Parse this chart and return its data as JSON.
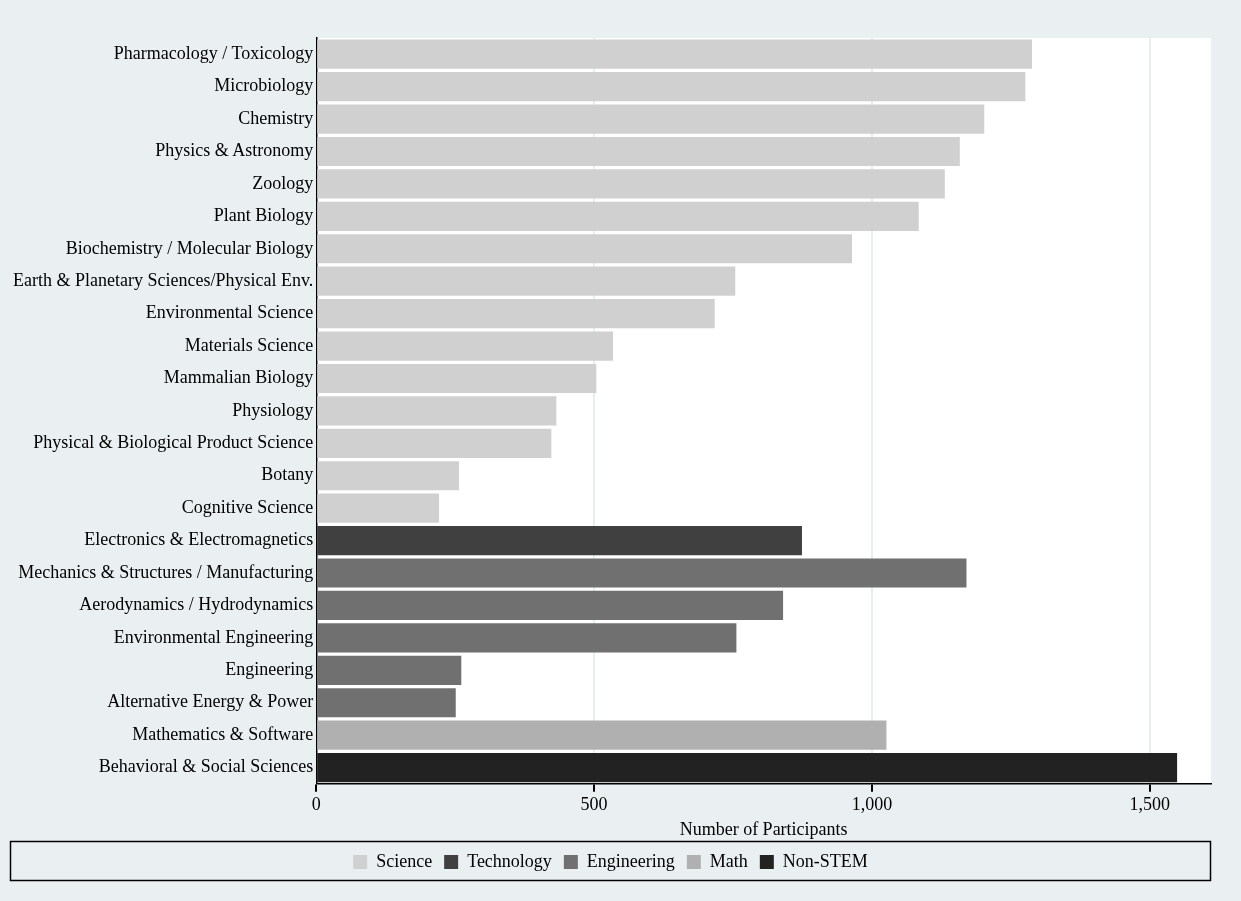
{
  "chart_data": {
    "type": "bar",
    "orientation": "horizontal",
    "xlabel": "Number of Participants",
    "categories": [
      "Pharmacology / Toxicology",
      "Microbiology",
      "Chemistry",
      "Physics & Astronomy",
      "Zoology",
      "Plant Biology",
      "Biochemistry / Molecular Biology",
      "Earth & Planetary Sciences/Physical Env.",
      "Environmental Science",
      "Materials Science",
      "Mammalian Biology",
      "Physiology",
      "Physical & Biological Product Science",
      "Botany",
      "Cognitive Science",
      "Electronics & Electromagnetics",
      "Mechanics & Structures / Manufacturing",
      "Aerodynamics / Hydrodynamics",
      "Environmental Engineering",
      "Engineering",
      "Alternative Energy & Power",
      "Mathematics & Software",
      "Behavioral & Social Sciences"
    ],
    "series": [
      {
        "name": "Science",
        "color": "#d0d0d0",
        "values": [
          1288,
          1276,
          1202,
          1158,
          1131,
          1084,
          964,
          754,
          717,
          534,
          504,
          432,
          423,
          257,
          221,
          null,
          null,
          null,
          null,
          null,
          null,
          null,
          null
        ]
      },
      {
        "name": "Technology",
        "color": "#404040",
        "values": [
          null,
          null,
          null,
          null,
          null,
          null,
          null,
          null,
          null,
          null,
          null,
          null,
          null,
          null,
          null,
          874,
          null,
          null,
          null,
          null,
          null,
          null,
          null
        ]
      },
      {
        "name": "Engineering",
        "color": "#707070",
        "values": [
          null,
          null,
          null,
          null,
          null,
          null,
          null,
          null,
          null,
          null,
          null,
          null,
          null,
          null,
          null,
          null,
          1170,
          840,
          756,
          261,
          251,
          null,
          null
        ]
      },
      {
        "name": "Math",
        "color": "#b0b0b0",
        "values": [
          null,
          null,
          null,
          null,
          null,
          null,
          null,
          null,
          null,
          null,
          null,
          null,
          null,
          null,
          null,
          null,
          null,
          null,
          null,
          null,
          null,
          1026,
          null
        ]
      },
      {
        "name": "Non-STEM",
        "color": "#222222",
        "values": [
          null,
          null,
          null,
          null,
          null,
          null,
          null,
          null,
          null,
          null,
          null,
          null,
          null,
          null,
          null,
          null,
          null,
          null,
          null,
          null,
          null,
          null,
          1549
        ]
      }
    ],
    "xlim": [
      0,
      1610
    ],
    "xticks": [
      0,
      500,
      {
        "value": 1000,
        "label": "1,000"
      },
      {
        "value": 1500,
        "label": "1,500"
      }
    ],
    "grid": "x",
    "legend": "bottom"
  }
}
